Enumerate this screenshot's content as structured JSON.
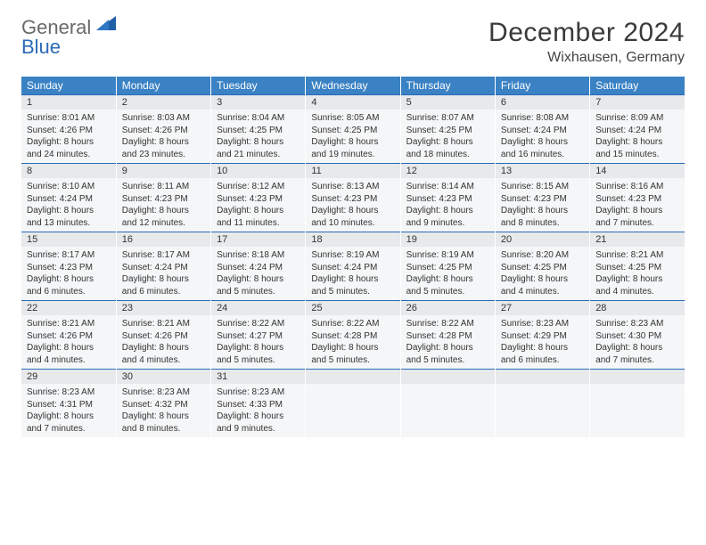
{
  "logo": {
    "word1": "General",
    "word2": "Blue"
  },
  "title": "December 2024",
  "location": "Wixhausen, Germany",
  "colors": {
    "header_bg": "#3a82c4",
    "header_text": "#ffffff",
    "daynum_bg": "#e7e9eb",
    "week_border": "#2a6ab8",
    "body_bg": "#f5f6f7",
    "title_color": "#3a3a3a"
  },
  "day_headers": [
    "Sunday",
    "Monday",
    "Tuesday",
    "Wednesday",
    "Thursday",
    "Friday",
    "Saturday"
  ],
  "weeks": [
    [
      {
        "num": "1",
        "sunrise": "Sunrise: 8:01 AM",
        "sunset": "Sunset: 4:26 PM",
        "daylight": "Daylight: 8 hours and 24 minutes."
      },
      {
        "num": "2",
        "sunrise": "Sunrise: 8:03 AM",
        "sunset": "Sunset: 4:26 PM",
        "daylight": "Daylight: 8 hours and 23 minutes."
      },
      {
        "num": "3",
        "sunrise": "Sunrise: 8:04 AM",
        "sunset": "Sunset: 4:25 PM",
        "daylight": "Daylight: 8 hours and 21 minutes."
      },
      {
        "num": "4",
        "sunrise": "Sunrise: 8:05 AM",
        "sunset": "Sunset: 4:25 PM",
        "daylight": "Daylight: 8 hours and 19 minutes."
      },
      {
        "num": "5",
        "sunrise": "Sunrise: 8:07 AM",
        "sunset": "Sunset: 4:25 PM",
        "daylight": "Daylight: 8 hours and 18 minutes."
      },
      {
        "num": "6",
        "sunrise": "Sunrise: 8:08 AM",
        "sunset": "Sunset: 4:24 PM",
        "daylight": "Daylight: 8 hours and 16 minutes."
      },
      {
        "num": "7",
        "sunrise": "Sunrise: 8:09 AM",
        "sunset": "Sunset: 4:24 PM",
        "daylight": "Daylight: 8 hours and 15 minutes."
      }
    ],
    [
      {
        "num": "8",
        "sunrise": "Sunrise: 8:10 AM",
        "sunset": "Sunset: 4:24 PM",
        "daylight": "Daylight: 8 hours and 13 minutes."
      },
      {
        "num": "9",
        "sunrise": "Sunrise: 8:11 AM",
        "sunset": "Sunset: 4:23 PM",
        "daylight": "Daylight: 8 hours and 12 minutes."
      },
      {
        "num": "10",
        "sunrise": "Sunrise: 8:12 AM",
        "sunset": "Sunset: 4:23 PM",
        "daylight": "Daylight: 8 hours and 11 minutes."
      },
      {
        "num": "11",
        "sunrise": "Sunrise: 8:13 AM",
        "sunset": "Sunset: 4:23 PM",
        "daylight": "Daylight: 8 hours and 10 minutes."
      },
      {
        "num": "12",
        "sunrise": "Sunrise: 8:14 AM",
        "sunset": "Sunset: 4:23 PM",
        "daylight": "Daylight: 8 hours and 9 minutes."
      },
      {
        "num": "13",
        "sunrise": "Sunrise: 8:15 AM",
        "sunset": "Sunset: 4:23 PM",
        "daylight": "Daylight: 8 hours and 8 minutes."
      },
      {
        "num": "14",
        "sunrise": "Sunrise: 8:16 AM",
        "sunset": "Sunset: 4:23 PM",
        "daylight": "Daylight: 8 hours and 7 minutes."
      }
    ],
    [
      {
        "num": "15",
        "sunrise": "Sunrise: 8:17 AM",
        "sunset": "Sunset: 4:23 PM",
        "daylight": "Daylight: 8 hours and 6 minutes."
      },
      {
        "num": "16",
        "sunrise": "Sunrise: 8:17 AM",
        "sunset": "Sunset: 4:24 PM",
        "daylight": "Daylight: 8 hours and 6 minutes."
      },
      {
        "num": "17",
        "sunrise": "Sunrise: 8:18 AM",
        "sunset": "Sunset: 4:24 PM",
        "daylight": "Daylight: 8 hours and 5 minutes."
      },
      {
        "num": "18",
        "sunrise": "Sunrise: 8:19 AM",
        "sunset": "Sunset: 4:24 PM",
        "daylight": "Daylight: 8 hours and 5 minutes."
      },
      {
        "num": "19",
        "sunrise": "Sunrise: 8:19 AM",
        "sunset": "Sunset: 4:25 PM",
        "daylight": "Daylight: 8 hours and 5 minutes."
      },
      {
        "num": "20",
        "sunrise": "Sunrise: 8:20 AM",
        "sunset": "Sunset: 4:25 PM",
        "daylight": "Daylight: 8 hours and 4 minutes."
      },
      {
        "num": "21",
        "sunrise": "Sunrise: 8:21 AM",
        "sunset": "Sunset: 4:25 PM",
        "daylight": "Daylight: 8 hours and 4 minutes."
      }
    ],
    [
      {
        "num": "22",
        "sunrise": "Sunrise: 8:21 AM",
        "sunset": "Sunset: 4:26 PM",
        "daylight": "Daylight: 8 hours and 4 minutes."
      },
      {
        "num": "23",
        "sunrise": "Sunrise: 8:21 AM",
        "sunset": "Sunset: 4:26 PM",
        "daylight": "Daylight: 8 hours and 4 minutes."
      },
      {
        "num": "24",
        "sunrise": "Sunrise: 8:22 AM",
        "sunset": "Sunset: 4:27 PM",
        "daylight": "Daylight: 8 hours and 5 minutes."
      },
      {
        "num": "25",
        "sunrise": "Sunrise: 8:22 AM",
        "sunset": "Sunset: 4:28 PM",
        "daylight": "Daylight: 8 hours and 5 minutes."
      },
      {
        "num": "26",
        "sunrise": "Sunrise: 8:22 AM",
        "sunset": "Sunset: 4:28 PM",
        "daylight": "Daylight: 8 hours and 5 minutes."
      },
      {
        "num": "27",
        "sunrise": "Sunrise: 8:23 AM",
        "sunset": "Sunset: 4:29 PM",
        "daylight": "Daylight: 8 hours and 6 minutes."
      },
      {
        "num": "28",
        "sunrise": "Sunrise: 8:23 AM",
        "sunset": "Sunset: 4:30 PM",
        "daylight": "Daylight: 8 hours and 7 minutes."
      }
    ],
    [
      {
        "num": "29",
        "sunrise": "Sunrise: 8:23 AM",
        "sunset": "Sunset: 4:31 PM",
        "daylight": "Daylight: 8 hours and 7 minutes."
      },
      {
        "num": "30",
        "sunrise": "Sunrise: 8:23 AM",
        "sunset": "Sunset: 4:32 PM",
        "daylight": "Daylight: 8 hours and 8 minutes."
      },
      {
        "num": "31",
        "sunrise": "Sunrise: 8:23 AM",
        "sunset": "Sunset: 4:33 PM",
        "daylight": "Daylight: 8 hours and 9 minutes."
      },
      {
        "num": "",
        "sunrise": "",
        "sunset": "",
        "daylight": ""
      },
      {
        "num": "",
        "sunrise": "",
        "sunset": "",
        "daylight": ""
      },
      {
        "num": "",
        "sunrise": "",
        "sunset": "",
        "daylight": ""
      },
      {
        "num": "",
        "sunrise": "",
        "sunset": "",
        "daylight": ""
      }
    ]
  ]
}
